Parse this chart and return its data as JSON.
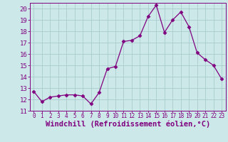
{
  "x": [
    0,
    1,
    2,
    3,
    4,
    5,
    6,
    7,
    8,
    9,
    10,
    11,
    12,
    13,
    14,
    15,
    16,
    17,
    18,
    19,
    20,
    21,
    22,
    23
  ],
  "y": [
    12.7,
    11.8,
    12.2,
    12.3,
    12.4,
    12.4,
    12.3,
    11.6,
    12.6,
    14.7,
    14.9,
    17.1,
    17.2,
    17.6,
    19.3,
    20.3,
    17.9,
    19.0,
    19.7,
    18.4,
    16.1,
    15.5,
    15.0,
    13.8
  ],
  "xlim": [
    -0.5,
    23.5
  ],
  "ylim": [
    11,
    20.5
  ],
  "yticks": [
    11,
    12,
    13,
    14,
    15,
    16,
    17,
    18,
    19,
    20
  ],
  "xticks": [
    0,
    1,
    2,
    3,
    4,
    5,
    6,
    7,
    8,
    9,
    10,
    11,
    12,
    13,
    14,
    15,
    16,
    17,
    18,
    19,
    20,
    21,
    22,
    23
  ],
  "xlabel": "Windchill (Refroidissement éolien,°C)",
  "line_color": "#800080",
  "marker": "D",
  "marker_size": 2.5,
  "bg_color": "#cce8e8",
  "grid_color": "#aacccc",
  "tick_color": "#800080",
  "label_color": "#800080",
  "font_size_xlabel": 7.5,
  "font_size_xtick": 5.5,
  "font_size_ytick": 6.5
}
